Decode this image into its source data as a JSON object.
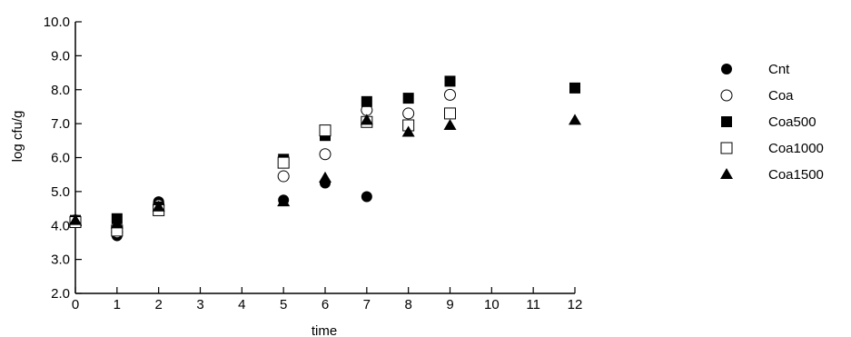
{
  "chart_data": {
    "type": "scatter",
    "xlabel": "time",
    "ylabel": "log cfu/g",
    "xlim": [
      0,
      12
    ],
    "ylim": [
      2.0,
      10.0
    ],
    "x_ticks": [
      "0",
      "1",
      "2",
      "3",
      "4",
      "5",
      "6",
      "7",
      "8",
      "9",
      "10",
      "11",
      "12"
    ],
    "y_ticks": [
      "2.0",
      "3.0",
      "4.0",
      "5.0",
      "6.0",
      "7.0",
      "8.0",
      "9.0",
      "10.0"
    ],
    "grid": false,
    "legend_position": "right",
    "series": [
      {
        "name": "Cnt",
        "marker": "filled-circle",
        "points": [
          [
            0,
            4.15
          ],
          [
            1,
            3.7
          ],
          [
            2,
            4.7
          ],
          [
            5,
            4.75
          ],
          [
            6,
            5.25
          ],
          [
            7,
            4.85
          ]
        ]
      },
      {
        "name": "Coa",
        "marker": "open-circle",
        "points": [
          [
            0,
            4.15
          ],
          [
            1,
            3.8
          ],
          [
            2,
            4.6
          ],
          [
            5,
            5.45
          ],
          [
            6,
            6.1
          ],
          [
            7,
            7.4
          ],
          [
            8,
            7.3
          ],
          [
            9,
            7.85
          ]
        ]
      },
      {
        "name": "Coa500",
        "marker": "filled-square",
        "points": [
          [
            0,
            4.15
          ],
          [
            1,
            4.2
          ],
          [
            2,
            4.55
          ],
          [
            5,
            5.95
          ],
          [
            6,
            6.65
          ],
          [
            7,
            7.65
          ],
          [
            8,
            7.75
          ],
          [
            9,
            8.25
          ],
          [
            12,
            8.05
          ]
        ]
      },
      {
        "name": "Coa1000",
        "marker": "open-square",
        "points": [
          [
            0,
            4.1
          ],
          [
            1,
            3.85
          ],
          [
            2,
            4.45
          ],
          [
            5,
            5.85
          ],
          [
            6,
            6.8
          ],
          [
            7,
            7.05
          ],
          [
            8,
            6.95
          ],
          [
            9,
            7.3
          ]
        ]
      },
      {
        "name": "Coa1500",
        "marker": "filled-triangle",
        "points": [
          [
            0,
            4.15
          ],
          [
            1,
            4.05
          ],
          [
            2,
            4.55
          ],
          [
            5,
            4.7
          ],
          [
            6,
            5.4
          ],
          [
            7,
            7.1
          ],
          [
            8,
            6.75
          ],
          [
            9,
            6.95
          ],
          [
            12,
            7.1
          ]
        ]
      }
    ]
  }
}
